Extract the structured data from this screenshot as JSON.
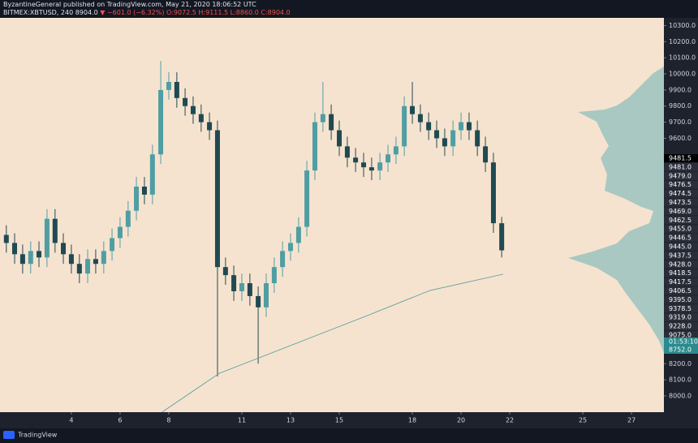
{
  "header": {
    "author_line": "ByzantineGeneral published on TradingView.com, May 21, 2020 18:06:52 UTC",
    "symbol": "BITMEX:XBTUSD, 240",
    "last": "8904.0",
    "change": "▼ −601.0 (−6.32%)",
    "ohlc": [
      "O:9072.5",
      "H:9111.5",
      "L:8860.0",
      "C:8904.0"
    ]
  },
  "chart_data": {
    "type": "candlestick",
    "x": [
      1.33,
      1.67,
      2,
      2.33,
      2.67,
      3,
      3.33,
      3.67,
      4,
      4.33,
      4.67,
      5,
      5.33,
      5.67,
      6,
      6.33,
      6.67,
      7,
      7.33,
      7.67,
      8,
      8.33,
      8.67,
      9,
      9.33,
      9.67,
      10,
      10.33,
      10.67,
      11,
      11.33,
      11.67,
      12,
      12.33,
      12.67,
      13,
      13.33,
      13.67,
      14,
      14.33,
      14.67,
      15,
      15.33,
      15.67,
      16,
      16.33,
      16.67,
      17,
      17.33,
      17.67,
      18,
      18.33,
      18.67,
      19,
      19.33,
      19.67,
      20,
      20.33,
      20.67,
      21,
      21.33,
      21.67
    ],
    "open": [
      9000,
      8950,
      8880,
      8820,
      8900,
      8860,
      9100,
      8950,
      8880,
      8820,
      8760,
      8850,
      8820,
      8900,
      8980,
      9050,
      9150,
      9300,
      9250,
      9500,
      9900,
      9950,
      9850,
      9800,
      9750,
      9700,
      9650,
      8800,
      8750,
      8650,
      8700,
      8620,
      8550,
      8700,
      8800,
      8900,
      8950,
      9050,
      9400,
      9700,
      9750,
      9650,
      9550,
      9480,
      9450,
      9420,
      9400,
      9450,
      9500,
      9550,
      9800,
      9750,
      9700,
      9650,
      9600,
      9550,
      9650,
      9700,
      9650,
      9550,
      9450,
      9072.5
    ],
    "high": [
      9060,
      9010,
      8940,
      8960,
      8960,
      9160,
      9160,
      9010,
      8940,
      8880,
      8910,
      8910,
      8960,
      9040,
      9110,
      9210,
      9360,
      9360,
      9560,
      10080,
      10010,
      10010,
      9910,
      9860,
      9810,
      9760,
      9710,
      8860,
      8810,
      8760,
      8760,
      8680,
      8760,
      8860,
      8960,
      9010,
      9110,
      9460,
      9760,
      9950,
      9810,
      9710,
      9610,
      9540,
      9510,
      9480,
      9510,
      9560,
      9610,
      9860,
      9950,
      9810,
      9760,
      9710,
      9660,
      9710,
      9760,
      9760,
      9710,
      9610,
      9510,
      9111.5
    ],
    "low": [
      8890,
      8820,
      8760,
      8760,
      8800,
      8800,
      8890,
      8820,
      8760,
      8700,
      8700,
      8760,
      8760,
      8840,
      8920,
      8990,
      9090,
      9190,
      9190,
      9440,
      9840,
      9790,
      9740,
      9690,
      9640,
      9590,
      8120,
      8690,
      8590,
      8590,
      8560,
      8200,
      8490,
      8640,
      8740,
      8840,
      8890,
      8990,
      9340,
      9640,
      9590,
      9490,
      9420,
      9390,
      9360,
      9340,
      9340,
      9390,
      9440,
      9490,
      9690,
      9640,
      9590,
      9540,
      9490,
      9490,
      9590,
      9590,
      9490,
      9390,
      9012.5,
      8860
    ],
    "close": [
      8950,
      8880,
      8820,
      8900,
      8860,
      9100,
      8950,
      8880,
      8820,
      8760,
      8850,
      8820,
      8900,
      8980,
      9050,
      9150,
      9300,
      9250,
      9500,
      9900,
      9950,
      9850,
      9800,
      9750,
      9700,
      9650,
      8800,
      8750,
      8650,
      8700,
      8620,
      8550,
      8700,
      8800,
      8900,
      8950,
      9050,
      9400,
      9700,
      9750,
      9650,
      9550,
      9480,
      9450,
      9420,
      9400,
      9450,
      9500,
      9550,
      9800,
      9750,
      9700,
      9650,
      9600,
      9550,
      9650,
      9700,
      9650,
      9550,
      9450,
      9072.5,
      8904
    ],
    "up_color": "#4f9ea3",
    "down_color": "#1f4a52",
    "xlim": [
      1.07,
      28.33
    ],
    "xticks": [
      4,
      6,
      8,
      11,
      13,
      15,
      18,
      20,
      22,
      25,
      27
    ],
    "ylim": [
      7899,
      10348
    ],
    "yticks": [
      {
        "value": 10300,
        "label": "10300.0"
      },
      {
        "value": 10200,
        "label": "10200.0"
      },
      {
        "value": 10100,
        "label": "10100.0"
      },
      {
        "value": 10000,
        "label": "10000.0"
      },
      {
        "value": 9900,
        "label": "9900.0"
      },
      {
        "value": 9800,
        "label": "9800.0"
      },
      {
        "value": 9700,
        "label": "9700.0"
      },
      {
        "value": 9600,
        "label": "9600.0"
      },
      {
        "value": 8200,
        "label": "8200.0"
      },
      {
        "value": 8100,
        "label": "8100.0"
      },
      {
        "value": 8000,
        "label": "8000.0"
      }
    ],
    "ma_line": {
      "x": [
        7.73,
        10.07,
        13.07,
        16.07,
        18.73,
        21.73
      ],
      "values": [
        7900,
        8140,
        8317,
        8494,
        8655,
        8756
      ],
      "color": "#6aa6a9"
    },
    "price_labels": [
      "9481.5",
      "9481.0",
      "9479.0",
      "9476.5",
      "9474.5",
      "9473.5",
      "9469.0",
      "9462.5",
      "9455.0",
      "9446.5",
      "9445.0",
      "9437.5",
      "9428.0",
      "9418.5",
      "9417.5",
      "9406.5",
      "9395.0",
      "9378.5",
      "9319.0",
      "9228.0",
      "9075.0"
    ],
    "countdown": "01:53:10",
    "countdown_price": "8752.0"
  },
  "footer": {
    "brand": "TradingView"
  }
}
